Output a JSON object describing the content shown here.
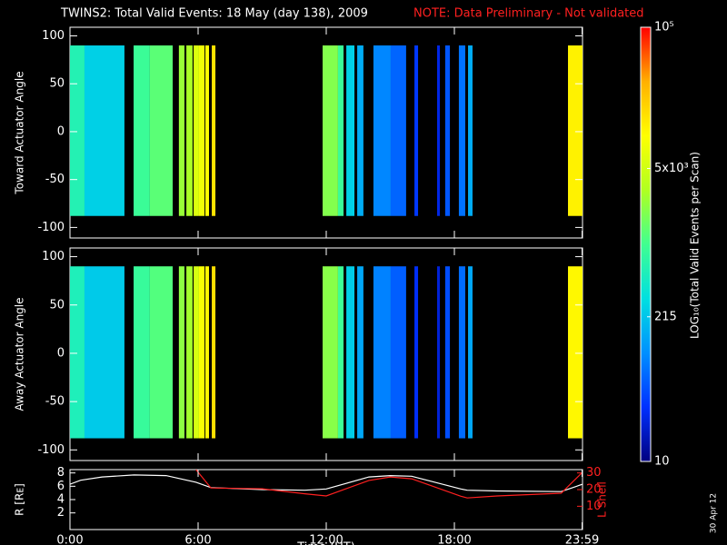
{
  "header": {
    "title": "TWINS2: Total Valid Events: 18 May (day 138), 2009",
    "note": "NOTE: Data Preliminary - Not validated",
    "stamp": "30 Apr 12"
  },
  "colorbar": {
    "label": "LOG₁₀(Total Valid Events per Scan)",
    "log": true,
    "clim": [
      10,
      100000
    ],
    "ticks": [
      10,
      215,
      {
        "value": 5000,
        "label": "5x10³"
      },
      {
        "value": 100000,
        "label": "10⁵"
      }
    ],
    "colormap": [
      "#000080",
      "#0030ff",
      "#0090ff",
      "#00e0e0",
      "#40ff90",
      "#b0ff20",
      "#ffff00",
      "#ffb000",
      "#ff0000"
    ]
  },
  "chart_data": [
    {
      "type": "heatmap",
      "ylabel": "Toward Actuator Angle",
      "xlim": [
        0,
        24
      ],
      "ylim": [
        -111,
        109
      ],
      "yticks": [
        100,
        50,
        0,
        -50,
        -100
      ],
      "angle_range": [
        -88,
        90
      ],
      "x_start": [
        0,
        0.68,
        2.98,
        3.74,
        5.1,
        5.45,
        5.79,
        6.04,
        6.34,
        6.64,
        11.83,
        12.55,
        12.94,
        13.45,
        14.21,
        15.02,
        16.13,
        17.19,
        17.57,
        18.21,
        18.64,
        23.32
      ],
      "x_end": [
        0.68,
        2.55,
        3.74,
        4.81,
        5.36,
        5.74,
        6.04,
        6.3,
        6.51,
        6.81,
        12.55,
        12.81,
        13.32,
        13.74,
        15.02,
        15.74,
        16.3,
        17.32,
        17.79,
        18.51,
        18.85,
        24
      ],
      "values": [
        600,
        250,
        900,
        1300,
        2500,
        3000,
        6000,
        8000,
        10000,
        15000,
        2000,
        900,
        250,
        150,
        90,
        60,
        35,
        25,
        50,
        70,
        150,
        12000
      ]
    },
    {
      "type": "heatmap",
      "ylabel": "Away Actuator Angle",
      "xlim": [
        0,
        24
      ],
      "ylim": [
        -111,
        109
      ],
      "yticks": [
        100,
        50,
        0,
        -50,
        -100
      ],
      "angle_range": [
        -88,
        90
      ],
      "x_start": [
        0,
        0.68,
        2.98,
        3.74,
        5.1,
        5.45,
        5.79,
        6.04,
        6.34,
        6.64,
        11.83,
        12.55,
        12.94,
        13.45,
        14.21,
        15.02,
        16.13,
        17.19,
        17.57,
        18.21,
        18.64,
        23.32
      ],
      "x_end": [
        0.68,
        2.55,
        3.74,
        4.81,
        5.36,
        5.74,
        6.04,
        6.3,
        6.51,
        6.81,
        12.55,
        12.81,
        13.32,
        13.74,
        15.02,
        15.74,
        16.3,
        17.32,
        17.79,
        18.51,
        18.85,
        24
      ],
      "values": [
        550,
        230,
        850,
        1200,
        2200,
        2800,
        5500,
        9000,
        11000,
        16000,
        2100,
        950,
        240,
        140,
        85,
        55,
        30,
        22,
        45,
        65,
        140,
        11000
      ]
    },
    {
      "type": "line",
      "xlabel": "Time (UT)",
      "ylabel": "R [Rᴇ]",
      "y2label": "L Shell",
      "xlim": [
        0,
        24
      ],
      "ylim": [
        -0.5,
        8.5
      ],
      "yticks": [
        2,
        4,
        6,
        8
      ],
      "y2lim": [
        -4,
        32
      ],
      "y2ticks": [
        10,
        20,
        30
      ],
      "xticks": [
        {
          "value": 0,
          "label": "0:00"
        },
        {
          "value": 6,
          "label": "6:00"
        },
        {
          "value": 12,
          "label": "12:00"
        },
        {
          "value": 18,
          "label": "18:00"
        },
        {
          "value": 23.98,
          "label": "23:59"
        }
      ],
      "x": [
        0,
        0.5,
        1.5,
        3,
        4.5,
        5.9,
        6.6,
        9,
        11,
        12,
        14,
        15,
        16,
        18.3,
        18.6,
        20,
        23,
        24
      ],
      "series": [
        {
          "name": "R",
          "color": "#ffffff",
          "values": [
            6.3,
            6.9,
            7.4,
            7.7,
            7.6,
            6.6,
            5.8,
            5.5,
            5.4,
            5.6,
            7.4,
            7.6,
            7.5,
            5.6,
            5.4,
            5.3,
            5.2,
            6.3
          ]
        },
        {
          "name": "L Shell",
          "color": "#ff2020",
          "axis": "y2",
          "values": [
            31,
            null,
            null,
            null,
            null,
            32,
            21,
            20.5,
            17.5,
            16.2,
            25.5,
            27.6,
            26.5,
            16,
            15,
            16.2,
            17.8,
            30.4
          ]
        }
      ]
    }
  ]
}
